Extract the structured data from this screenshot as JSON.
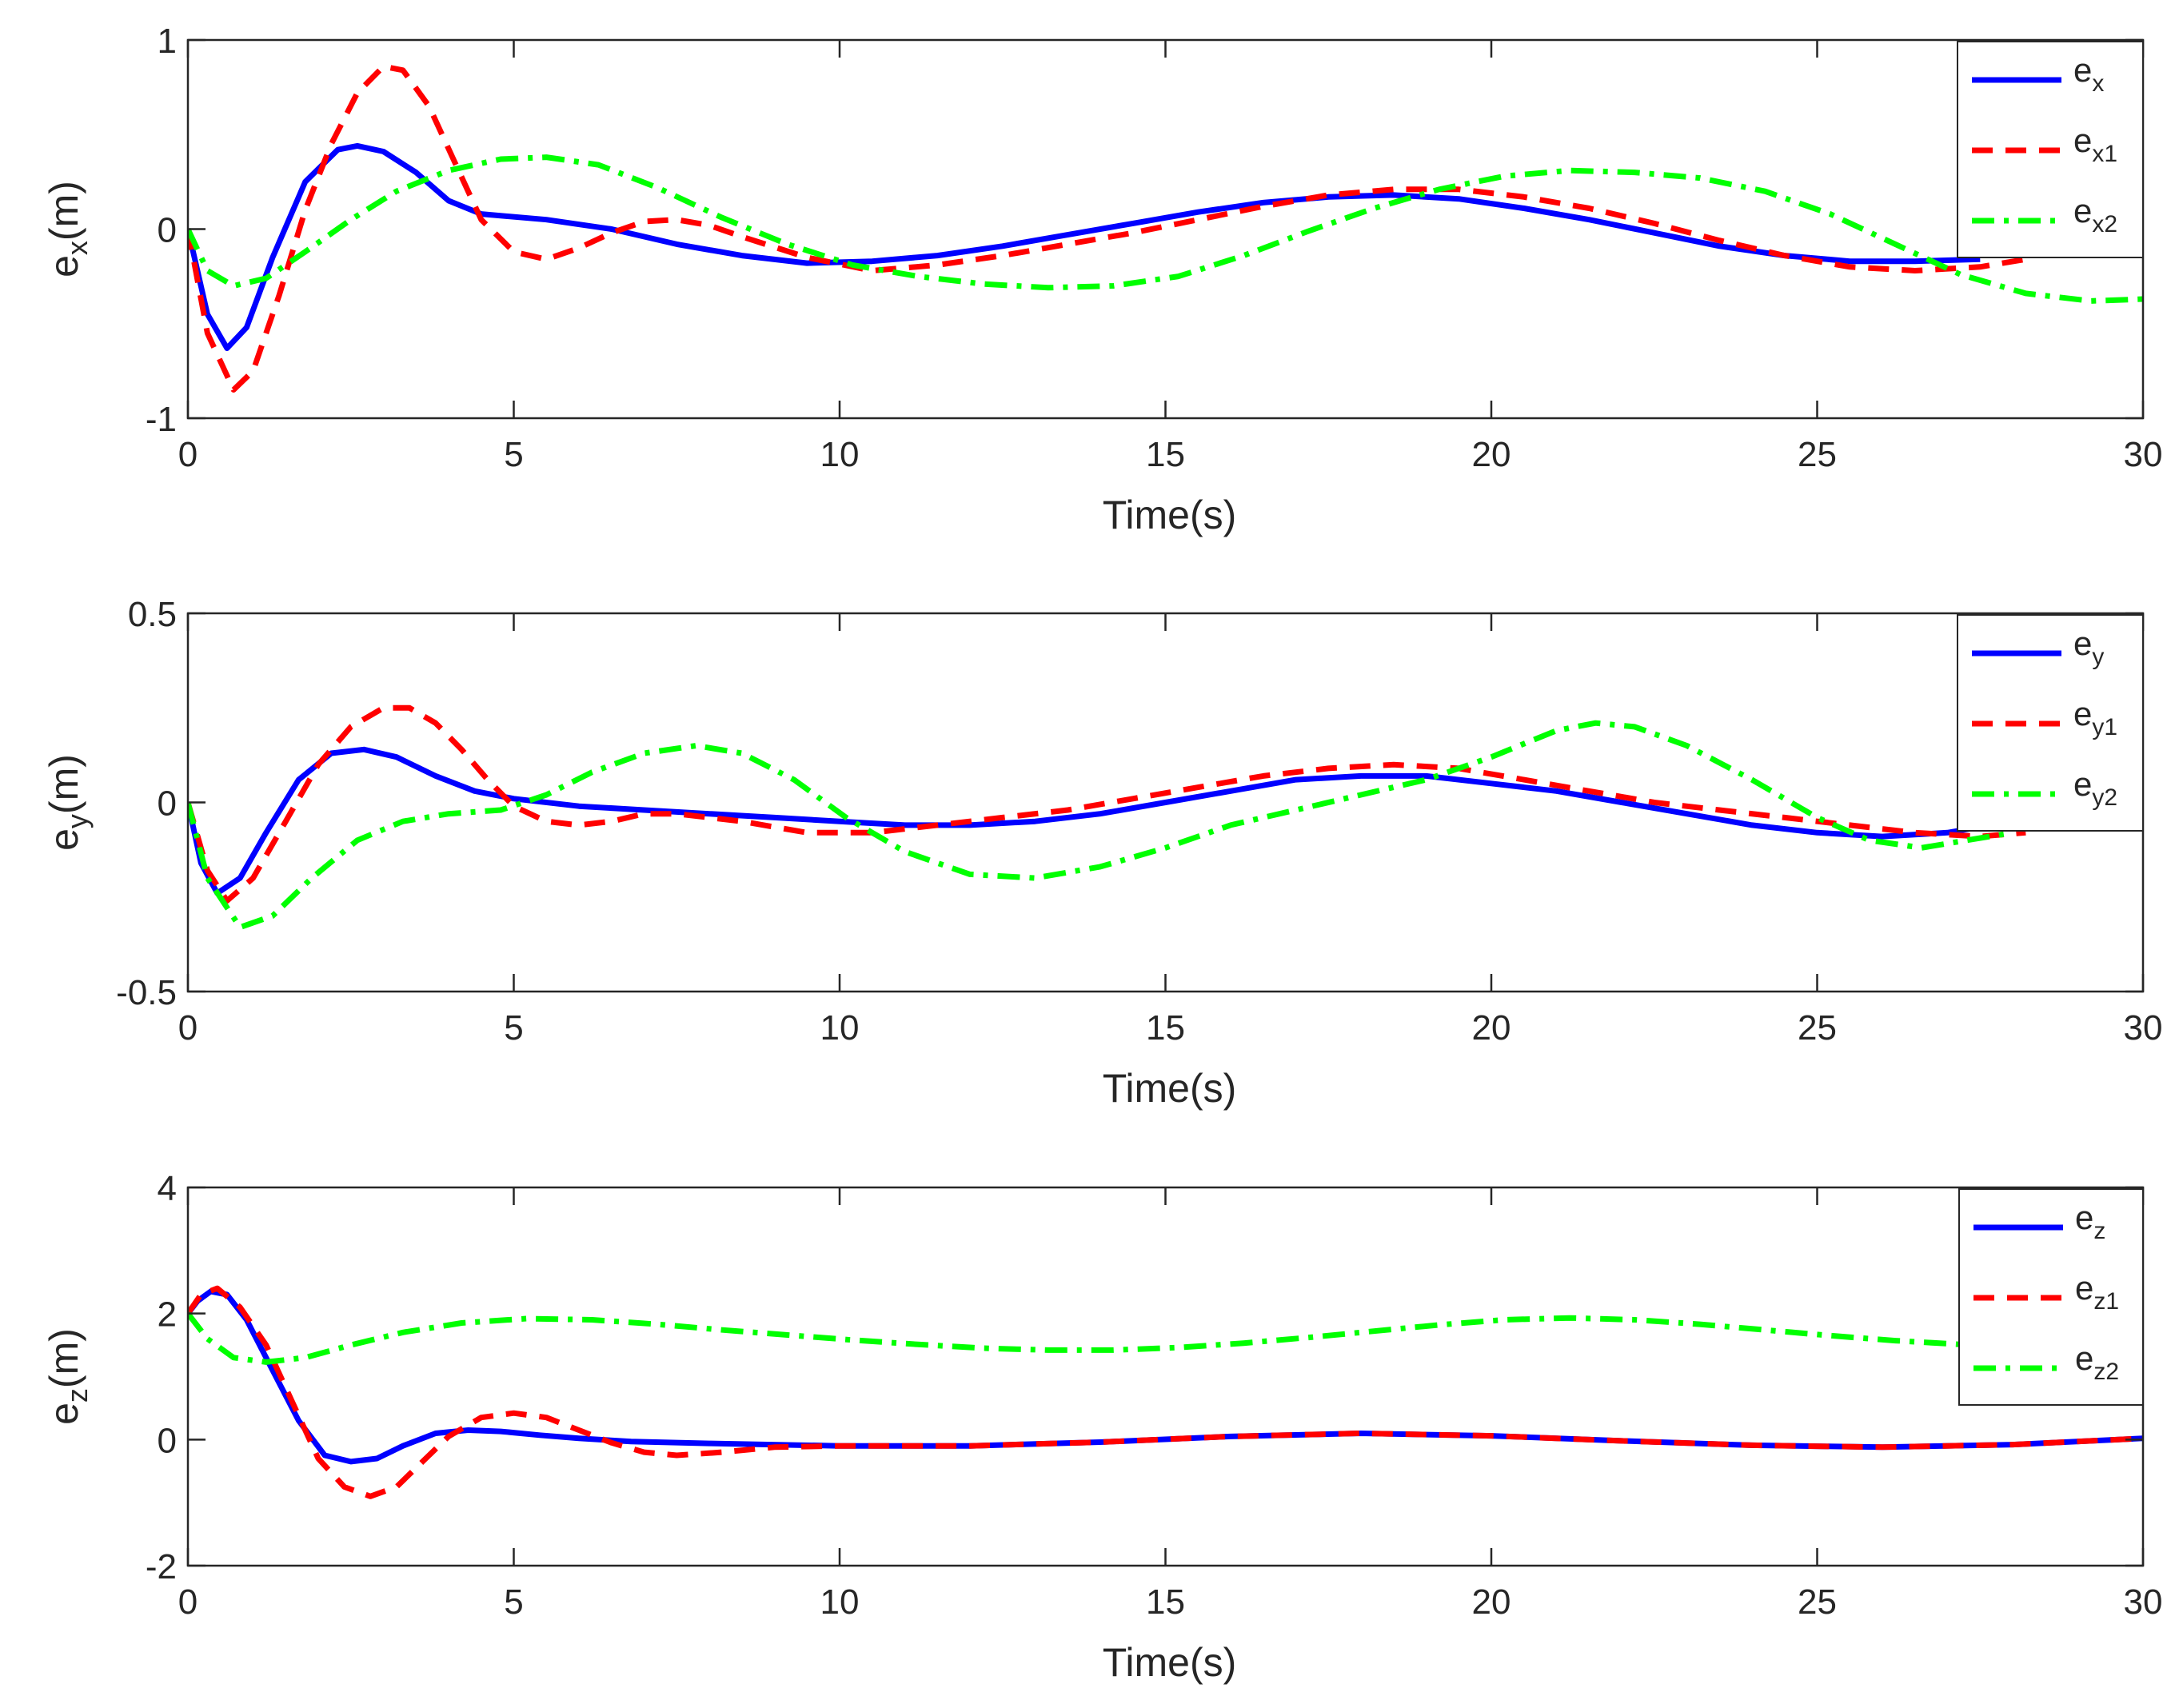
{
  "chart_data": [
    {
      "type": "line",
      "xlabel": "Time(s)",
      "ylabel": {
        "base": "e",
        "sub": "x",
        "unit": "(m)"
      },
      "xlim": [
        0,
        30
      ],
      "ylim": [
        -1,
        1
      ],
      "xticks": [
        0,
        5,
        10,
        15,
        20,
        25,
        30
      ],
      "xtick_labels": [
        "0",
        "5",
        "10",
        "15",
        "20",
        "25",
        "30"
      ],
      "yticks": [
        -1,
        0,
        1
      ],
      "ytick_labels": [
        "-1",
        "0",
        "1"
      ],
      "legend_position": "top-right",
      "series": [
        {
          "name": "e_x",
          "label_base": "e",
          "label_sub": "x",
          "color": "#0000ff",
          "style": "solid",
          "x": [
            0,
            0.3,
            0.6,
            0.9,
            1.3,
            1.8,
            2.3,
            2.6,
            3.0,
            3.5,
            4.0,
            4.5,
            5.5,
            6.5,
            7.5,
            8.5,
            9.5,
            10.5,
            11.5,
            12.5,
            13.5,
            14.5,
            15.5,
            16.5,
            17.5,
            18.5,
            19.5,
            20.5,
            21.5,
            22.5,
            23.5,
            24.5,
            25.5,
            26.5,
            27.5
          ],
          "y": [
            0,
            -0.45,
            -0.63,
            -0.52,
            -0.15,
            0.25,
            0.42,
            0.44,
            0.41,
            0.3,
            0.15,
            0.08,
            0.05,
            0.0,
            -0.08,
            -0.14,
            -0.18,
            -0.17,
            -0.14,
            -0.09,
            -0.03,
            0.03,
            0.09,
            0.14,
            0.17,
            0.18,
            0.16,
            0.11,
            0.05,
            -0.02,
            -0.09,
            -0.14,
            -0.17,
            -0.17,
            -0.16
          ]
        },
        {
          "name": "e_x1",
          "label_base": "e",
          "label_sub": "x1",
          "color": "#ff0000",
          "style": "dashed",
          "x": [
            0,
            0.3,
            0.7,
            1.0,
            1.4,
            1.8,
            2.2,
            2.6,
            3.0,
            3.3,
            3.7,
            4.1,
            4.5,
            5.0,
            5.5,
            6.0,
            6.5,
            7.0,
            7.5,
            8.0,
            8.5,
            9.5,
            10.5,
            11.5,
            12.5,
            13.5,
            14.5,
            15.5,
            16.5,
            17.5,
            18.5,
            19.5,
            20.5,
            21.5,
            22.5,
            23.5,
            24.5,
            25.5,
            26.5,
            27.5,
            28.2
          ],
          "y": [
            0,
            -0.55,
            -0.85,
            -0.75,
            -0.35,
            0.1,
            0.45,
            0.72,
            0.86,
            0.84,
            0.65,
            0.35,
            0.05,
            -0.12,
            -0.16,
            -0.1,
            -0.02,
            0.04,
            0.05,
            0.02,
            -0.04,
            -0.15,
            -0.22,
            -0.19,
            -0.14,
            -0.08,
            -0.02,
            0.05,
            0.12,
            0.18,
            0.21,
            0.21,
            0.17,
            0.11,
            0.03,
            -0.06,
            -0.14,
            -0.2,
            -0.22,
            -0.2,
            -0.16
          ]
        },
        {
          "name": "e_x2",
          "label_base": "e",
          "label_sub": "x2",
          "color": "#00ff00",
          "style": "dashdot",
          "x": [
            0,
            0.3,
            0.7,
            1.2,
            1.8,
            2.5,
            3.2,
            4.0,
            4.8,
            5.5,
            6.3,
            7.2,
            8.2,
            9.2,
            10.2,
            11.2,
            12.2,
            13.2,
            14.2,
            15.2,
            16.2,
            17.2,
            18.2,
            19.2,
            20.2,
            21.2,
            22.2,
            23.2,
            24.2,
            25.2,
            26.2,
            27.2,
            28.2,
            29.2,
            30
          ],
          "y": [
            0,
            -0.22,
            -0.3,
            -0.26,
            -0.12,
            0.05,
            0.2,
            0.31,
            0.37,
            0.38,
            0.34,
            0.22,
            0.06,
            -0.08,
            -0.19,
            -0.25,
            -0.29,
            -0.31,
            -0.3,
            -0.25,
            -0.14,
            -0.01,
            0.11,
            0.21,
            0.28,
            0.31,
            0.3,
            0.27,
            0.2,
            0.08,
            -0.08,
            -0.24,
            -0.34,
            -0.38,
            -0.37
          ]
        }
      ]
    },
    {
      "type": "line",
      "xlabel": "Time(s)",
      "ylabel": {
        "base": "e",
        "sub": "y",
        "unit": "(m)"
      },
      "xlim": [
        0,
        30
      ],
      "ylim": [
        -0.5,
        0.5
      ],
      "xticks": [
        0,
        5,
        10,
        15,
        20,
        25,
        30
      ],
      "xtick_labels": [
        "0",
        "5",
        "10",
        "15",
        "20",
        "25",
        "30"
      ],
      "yticks": [
        -0.5,
        0,
        0.5
      ],
      "ytick_labels": [
        "-0.5",
        "0",
        "0.5"
      ],
      "legend_position": "top-right",
      "series": [
        {
          "name": "e_y",
          "label_base": "e",
          "label_sub": "y",
          "color": "#0000ff",
          "style": "solid",
          "x": [
            0,
            0.2,
            0.45,
            0.8,
            1.2,
            1.7,
            2.2,
            2.7,
            3.2,
            3.8,
            4.4,
            5.0,
            6.0,
            7.0,
            8.0,
            9.0,
            10.0,
            11.0,
            12.0,
            13.0,
            14.0,
            15.0,
            16.0,
            17.0,
            18.0,
            19.0,
            20.0,
            21.0,
            22.0,
            23.0,
            24.0,
            25.0,
            26.0,
            27.0,
            28.0
          ],
          "y": [
            0,
            -0.16,
            -0.24,
            -0.2,
            -0.08,
            0.06,
            0.13,
            0.14,
            0.12,
            0.07,
            0.03,
            0.01,
            -0.01,
            -0.02,
            -0.03,
            -0.04,
            -0.05,
            -0.06,
            -0.06,
            -0.05,
            -0.03,
            0.0,
            0.03,
            0.06,
            0.07,
            0.07,
            0.05,
            0.03,
            0.0,
            -0.03,
            -0.06,
            -0.08,
            -0.09,
            -0.08,
            -0.05
          ]
        },
        {
          "name": "e_y1",
          "label_base": "e",
          "label_sub": "y1",
          "color": "#ff0000",
          "style": "dashed",
          "x": [
            0,
            0.3,
            0.6,
            1.0,
            1.5,
            2.0,
            2.5,
            3.0,
            3.4,
            3.8,
            4.2,
            4.6,
            5.0,
            5.5,
            6.0,
            6.5,
            7.0,
            7.5,
            8.5,
            9.5,
            10.5,
            11.5,
            12.5,
            13.5,
            14.5,
            15.5,
            16.5,
            17.5,
            18.5,
            19.5,
            20.5,
            21.5,
            22.5,
            23.5,
            24.5,
            25.5,
            26.5,
            27.5,
            28.2
          ],
          "y": [
            0,
            -0.18,
            -0.26,
            -0.2,
            -0.05,
            0.1,
            0.2,
            0.25,
            0.25,
            0.21,
            0.14,
            0.06,
            -0.01,
            -0.05,
            -0.06,
            -0.05,
            -0.03,
            -0.03,
            -0.05,
            -0.08,
            -0.08,
            -0.06,
            -0.04,
            -0.02,
            0.01,
            0.04,
            0.07,
            0.09,
            0.1,
            0.09,
            0.06,
            0.03,
            0.0,
            -0.02,
            -0.04,
            -0.06,
            -0.08,
            -0.09,
            -0.08
          ]
        },
        {
          "name": "e_y2",
          "label_base": "e",
          "label_sub": "y2",
          "color": "#00ff00",
          "style": "dashdot",
          "x": [
            0,
            0.3,
            0.8,
            1.3,
            1.9,
            2.6,
            3.3,
            4.0,
            4.8,
            5.5,
            6.2,
            7.0,
            7.8,
            8.5,
            9.3,
            10.1,
            11.0,
            12.0,
            13.0,
            14.0,
            15.0,
            16.0,
            17.0,
            18.0,
            19.0,
            20.0,
            21.0,
            21.6,
            22.2,
            23.0,
            24.0,
            25.0,
            25.8,
            26.6,
            27.3,
            28.0
          ],
          "y": [
            0,
            -0.2,
            -0.33,
            -0.3,
            -0.2,
            -0.1,
            -0.05,
            -0.03,
            -0.02,
            0.02,
            0.08,
            0.13,
            0.15,
            0.13,
            0.06,
            -0.04,
            -0.13,
            -0.19,
            -0.2,
            -0.17,
            -0.12,
            -0.06,
            -0.02,
            0.02,
            0.06,
            0.12,
            0.19,
            0.21,
            0.2,
            0.15,
            0.06,
            -0.04,
            -0.1,
            -0.12,
            -0.1,
            -0.08
          ]
        }
      ]
    },
    {
      "type": "line",
      "xlabel": "Time(s)",
      "ylabel": {
        "base": "e",
        "sub": "z",
        "unit": "(m)"
      },
      "xlim": [
        0,
        30
      ],
      "ylim": [
        -2,
        4
      ],
      "xticks": [
        0,
        5,
        10,
        15,
        20,
        25,
        30
      ],
      "xtick_labels": [
        "0",
        "5",
        "10",
        "15",
        "20",
        "25",
        "30"
      ],
      "yticks": [
        -2,
        0,
        2,
        4
      ],
      "ytick_labels": [
        "-2",
        "0",
        "2",
        "4"
      ],
      "legend_position": "top-right",
      "series": [
        {
          "name": "e_z",
          "label_base": "e",
          "label_sub": "z",
          "color": "#0000ff",
          "style": "solid",
          "x": [
            0,
            0.15,
            0.35,
            0.6,
            0.9,
            1.3,
            1.7,
            2.1,
            2.5,
            2.9,
            3.3,
            3.8,
            4.3,
            4.8,
            5.4,
            6.0,
            6.8,
            8.0,
            10.0,
            12.0,
            14.0,
            16.0,
            18.0,
            20.0,
            22.0,
            24.0,
            26.0,
            28.0,
            30.0
          ],
          "y": [
            2.0,
            2.2,
            2.35,
            2.3,
            1.9,
            1.1,
            0.3,
            -0.25,
            -0.35,
            -0.3,
            -0.1,
            0.1,
            0.15,
            0.13,
            0.07,
            0.02,
            -0.03,
            -0.06,
            -0.1,
            -0.1,
            -0.04,
            0.05,
            0.1,
            0.06,
            -0.02,
            -0.09,
            -0.12,
            -0.08,
            0.02
          ]
        },
        {
          "name": "e_z1",
          "label_base": "e",
          "label_sub": "z1",
          "color": "#ff0000",
          "style": "dashed",
          "x": [
            0,
            0.2,
            0.45,
            0.8,
            1.2,
            1.6,
            2.0,
            2.4,
            2.8,
            3.2,
            3.6,
            4.0,
            4.5,
            5.0,
            5.5,
            6.0,
            6.5,
            7.0,
            7.5,
            8.2,
            9.0,
            10.0,
            12.0,
            14.0,
            16.0,
            18.0,
            20.0,
            22.0,
            24.0,
            26.0,
            28.0,
            30.0
          ],
          "y": [
            2.0,
            2.3,
            2.4,
            2.1,
            1.5,
            0.6,
            -0.3,
            -0.75,
            -0.9,
            -0.75,
            -0.35,
            0.05,
            0.35,
            0.42,
            0.35,
            0.15,
            -0.05,
            -0.2,
            -0.25,
            -0.2,
            -0.12,
            -0.1,
            -0.1,
            -0.04,
            0.05,
            0.1,
            0.06,
            -0.02,
            -0.09,
            -0.12,
            -0.08,
            0.02
          ]
        },
        {
          "name": "e_z2",
          "label_base": "e",
          "label_sub": "z2",
          "color": "#00ff00",
          "style": "dashdot",
          "x": [
            0,
            0.3,
            0.7,
            1.2,
            1.8,
            2.5,
            3.3,
            4.2,
            5.2,
            6.2,
            7.2,
            8.2,
            9.2,
            10.2,
            11.2,
            12.2,
            13.2,
            14.2,
            15.2,
            16.2,
            17.2,
            18.2,
            19.2,
            20.2,
            21.2,
            22.2,
            23.2,
            24.2,
            25.2,
            26.2,
            27.2,
            28.0
          ],
          "y": [
            2.0,
            1.6,
            1.3,
            1.23,
            1.3,
            1.5,
            1.7,
            1.85,
            1.92,
            1.9,
            1.83,
            1.74,
            1.66,
            1.58,
            1.51,
            1.45,
            1.42,
            1.42,
            1.46,
            1.53,
            1.62,
            1.72,
            1.82,
            1.9,
            1.93,
            1.9,
            1.83,
            1.74,
            1.65,
            1.57,
            1.51,
            1.48
          ]
        }
      ]
    }
  ]
}
